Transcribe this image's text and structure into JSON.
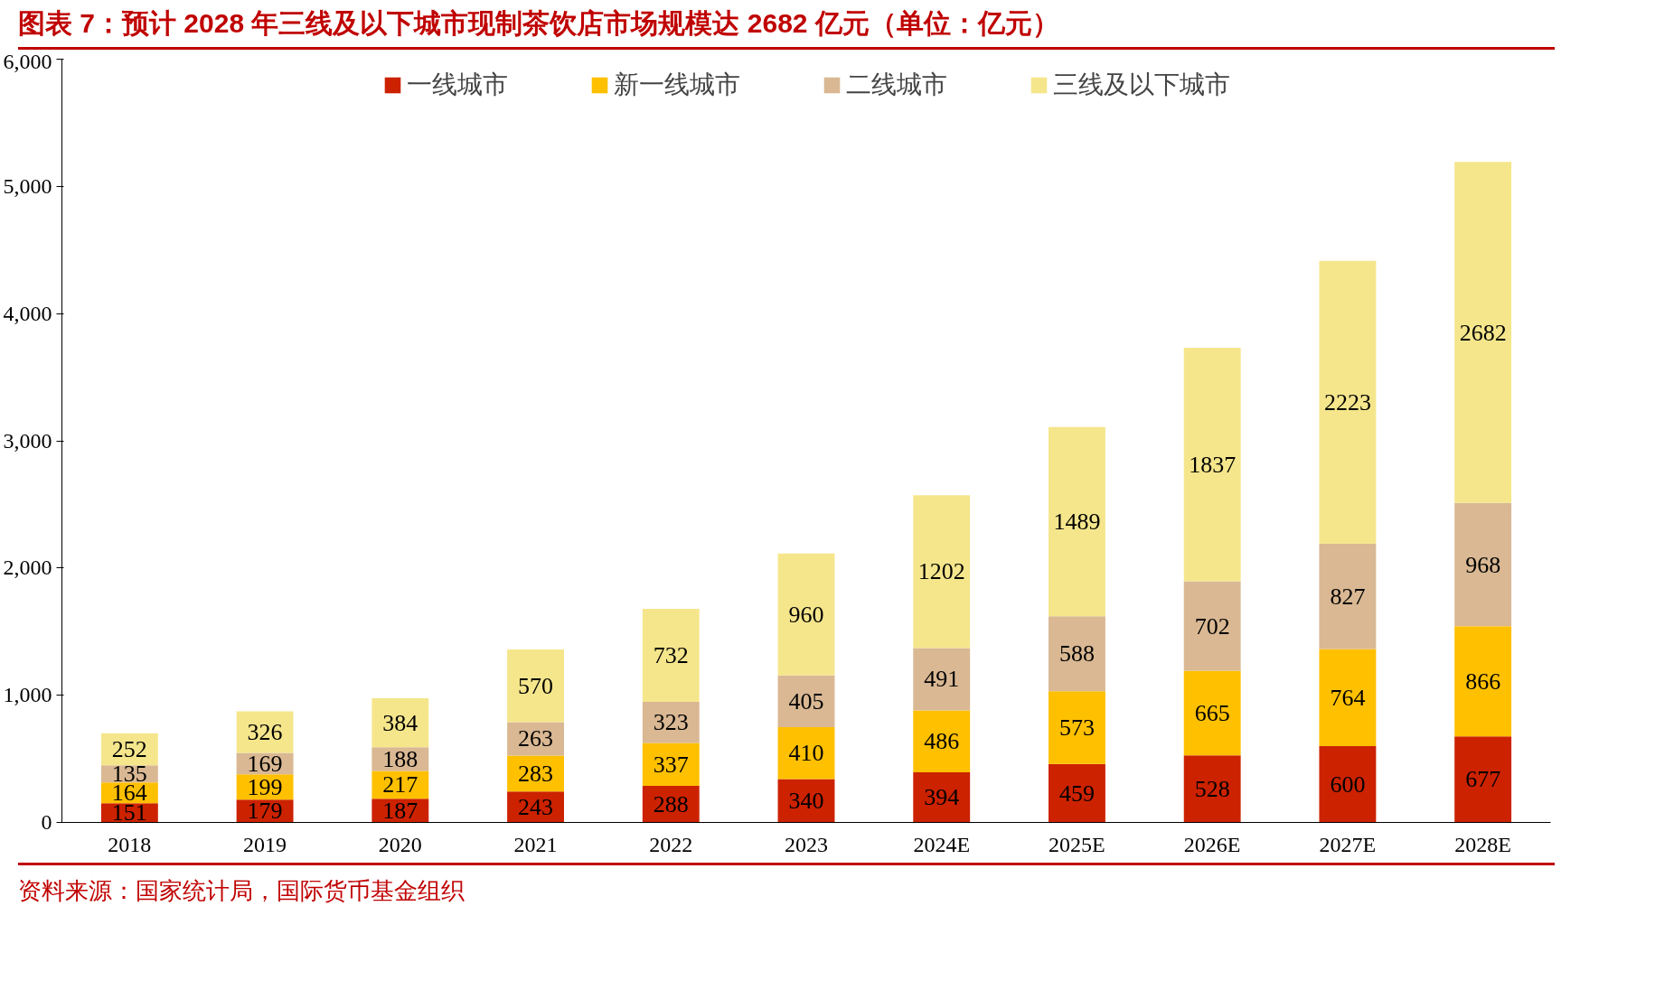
{
  "chart_data": {
    "type": "bar",
    "stacked": true,
    "title": "图表 7：预计 2028 年三线及以下城市现制茶饮店市场规模达 2682 亿元（单位：亿元）",
    "categories": [
      "2018",
      "2019",
      "2020",
      "2021",
      "2022",
      "2023",
      "2024E",
      "2025E",
      "2026E",
      "2027E",
      "2028E"
    ],
    "series": [
      {
        "name": "一线城市",
        "color": "#cc2200",
        "values": [
          151,
          179,
          187,
          243,
          288,
          340,
          394,
          459,
          528,
          600,
          677
        ]
      },
      {
        "name": "新一线城市",
        "color": "#ffc000",
        "values": [
          164,
          199,
          217,
          283,
          337,
          410,
          486,
          573,
          665,
          764,
          866
        ]
      },
      {
        "name": "二线城市",
        "color": "#d9b893",
        "values": [
          135,
          169,
          188,
          263,
          323,
          405,
          491,
          588,
          702,
          827,
          968
        ]
      },
      {
        "name": "三线及以下城市",
        "color": "#f5e68c",
        "values": [
          252,
          326,
          384,
          570,
          732,
          960,
          1202,
          1489,
          1837,
          2223,
          2682
        ]
      }
    ],
    "ylim": [
      0,
      6000
    ],
    "yticks": [
      0,
      {
        "value": 1000,
        "label": "1,000"
      },
      {
        "value": 2000,
        "label": "2,000"
      },
      {
        "value": 3000,
        "label": "3,000"
      },
      {
        "value": 4000,
        "label": "4,000"
      },
      {
        "value": 5000,
        "label": "5,000"
      },
      {
        "value": 6000,
        "label": "6,000"
      }
    ],
    "data_labels": true,
    "legend": "top",
    "grid": false,
    "annotations": [
      "资料来源：国家统计局，国际货币基金组织"
    ]
  }
}
